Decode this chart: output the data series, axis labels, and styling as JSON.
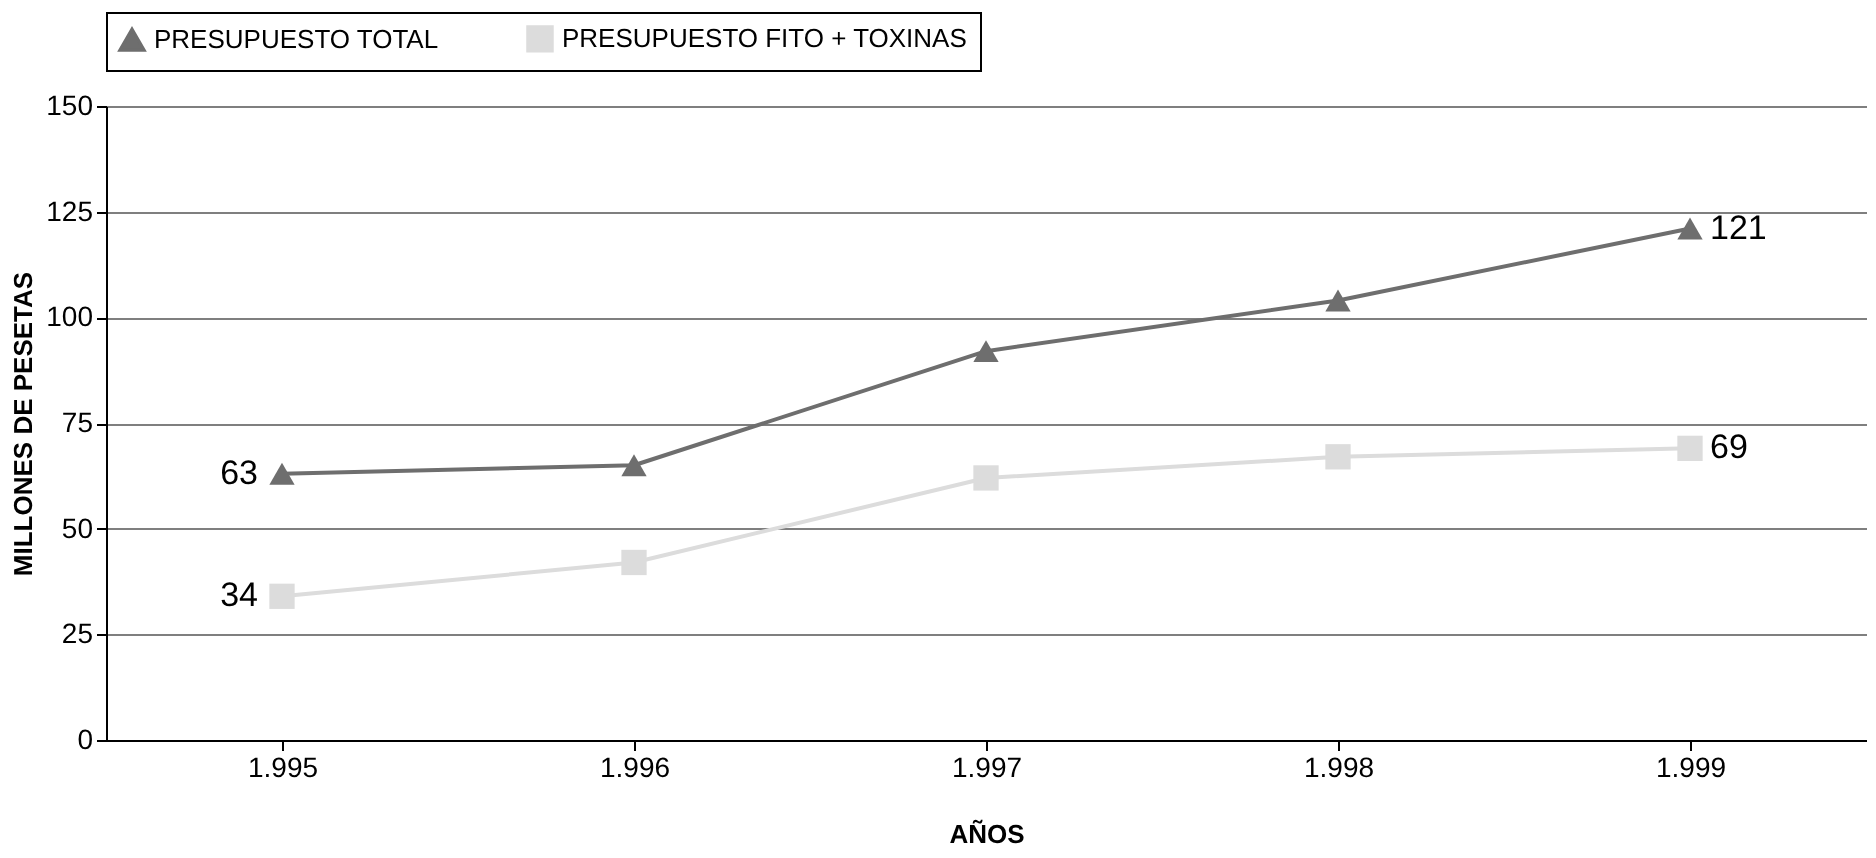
{
  "chart_data": {
    "type": "line",
    "xlabel": "AÑOS",
    "ylabel": "MILLONES DE PESETAS",
    "categories": [
      "1.995",
      "1.996",
      "1.997",
      "1.998",
      "1.999"
    ],
    "series": [
      {
        "name": "PRESUPUESTO TOTAL",
        "color": "#6e6e6e",
        "marker": "triangle",
        "values": [
          63,
          65,
          92,
          104,
          121
        ],
        "value_labels": [
          "63",
          null,
          null,
          null,
          "121"
        ]
      },
      {
        "name": "PRESUPUESTO FITO + TOXINAS",
        "color": "#dcdcdc",
        "marker": "square",
        "values": [
          34,
          42,
          62,
          67,
          69
        ],
        "value_labels": [
          "34",
          null,
          null,
          null,
          "69"
        ]
      }
    ],
    "ylim": [
      0,
      150
    ],
    "yticks": [
      0,
      25,
      50,
      75,
      100,
      125,
      150
    ],
    "grid": "y",
    "legend": "top"
  }
}
